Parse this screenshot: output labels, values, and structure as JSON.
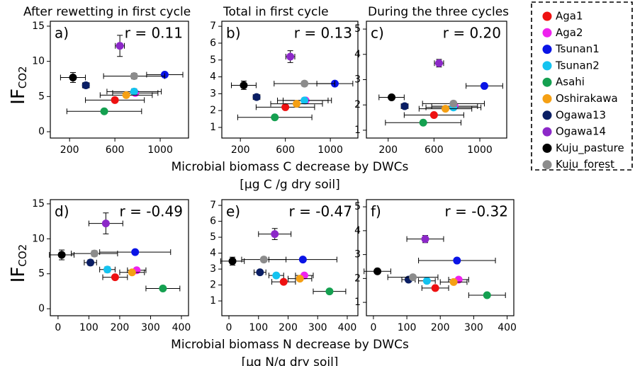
{
  "legend": {
    "names": [
      "Aga1",
      "Aga2",
      "Tsunan1",
      "Tsunan2",
      "Asahi",
      "Oshirakawa",
      "Ogawa13",
      "Ogawa14",
      "Kuju_pasture",
      "Kuju_forest"
    ],
    "colors": [
      "#ee1111",
      "#ee22ee",
      "#0a14e6",
      "#14c3f0",
      "#14a050",
      "#f5a014",
      "#0a1e64",
      "#8c28c8",
      "#000000",
      "#8c8c8c"
    ]
  },
  "chart_data": [
    {
      "type": "scatter",
      "title": "After rewetting in first cycle",
      "panel": "a)",
      "annotation": "r = 0.11",
      "ylabel": {
        "main": "IF",
        "sub": "CO2"
      },
      "x": [
        600,
        780,
        1040,
        770,
        506,
        700,
        344,
        644,
        230,
        770
      ],
      "x_err": [
        260,
        200,
        160,
        240,
        330,
        230,
        30,
        40,
        110,
        270
      ],
      "values": [
        4.5,
        5.5,
        8.1,
        5.7,
        2.9,
        5.2,
        6.6,
        12.2,
        7.7,
        7.9
      ],
      "y_err": [
        0.3,
        0.3,
        0.3,
        0.4,
        0.3,
        0.3,
        0.4,
        1.5,
        0.7,
        0.4
      ],
      "xlim": [
        30,
        1250
      ],
      "xticks": [
        200,
        600,
        1000
      ],
      "ylim": [
        -0.9,
        15.7
      ],
      "yticks": [
        0,
        5,
        10,
        15
      ]
    },
    {
      "type": "scatter",
      "title": "Total in first cycle",
      "panel": "b)",
      "annotation": "r = 0.13",
      "xlabel": [
        "Microbial biomass C decrease by DWCs",
        "[μg C /g dry soil]"
      ],
      "x": [
        600,
        780,
        1040,
        770,
        506,
        700,
        344,
        644,
        230,
        770
      ],
      "x_err": [
        260,
        200,
        160,
        240,
        330,
        230,
        30,
        40,
        110,
        270
      ],
      "values": [
        2.2,
        2.6,
        3.6,
        2.6,
        1.6,
        2.4,
        2.8,
        5.2,
        3.5,
        3.6
      ],
      "y_err": [
        0.1,
        0.1,
        0.1,
        0.15,
        0.1,
        0.1,
        0.1,
        0.35,
        0.25,
        0.15
      ],
      "xlim": [
        35,
        1245
      ],
      "xticks": [
        200,
        600,
        1000
      ],
      "ylim": [
        0.37,
        7.3
      ],
      "yticks": [
        1,
        2,
        3,
        4,
        5,
        6,
        7
      ]
    },
    {
      "type": "scatter",
      "title": "During the three cycles",
      "panel": "c)",
      "annotation": "r = 0.20",
      "x": [
        600,
        780,
        1040,
        770,
        506,
        700,
        344,
        644,
        230,
        770
      ],
      "x_err": [
        260,
        200,
        160,
        240,
        330,
        230,
        30,
        40,
        110,
        270
      ],
      "values": [
        1.6,
        1.95,
        2.75,
        1.9,
        1.3,
        1.85,
        1.95,
        3.65,
        2.3,
        2.05
      ],
      "y_err": [
        0.05,
        0.05,
        0.1,
        0.1,
        0.05,
        0.05,
        0.05,
        0.15,
        0.05,
        0.1
      ],
      "xlim": [
        10,
        1235
      ],
      "xticks": [
        200,
        600,
        1000
      ],
      "ylim": [
        0.69,
        5.31
      ],
      "yticks": [
        1,
        2,
        3,
        4,
        5
      ]
    },
    {
      "type": "scatter",
      "panel": "d)",
      "annotation": "r = -0.49",
      "ylabel": {
        "main": "IF",
        "sub": "CO2"
      },
      "x": [
        185,
        255,
        250,
        160,
        340,
        240,
        105,
        155,
        12,
        118
      ],
      "x_err": [
        40,
        30,
        115,
        25,
        55,
        40,
        20,
        55,
        40,
        75
      ],
      "values": [
        4.5,
        5.5,
        8.1,
        5.6,
        2.9,
        5.2,
        6.6,
        12.2,
        7.7,
        7.9
      ],
      "y_err": [
        0.3,
        0.3,
        0.3,
        0.4,
        0.3,
        0.3,
        0.4,
        1.5,
        0.7,
        0.4
      ],
      "xlim": [
        -25,
        423
      ],
      "xticks": [
        0,
        100,
        200,
        300,
        400
      ],
      "ylim": [
        -1.0,
        15.6
      ],
      "yticks": [
        0,
        5,
        10,
        15
      ]
    },
    {
      "type": "scatter",
      "panel": "e)",
      "annotation": "r = -0.47",
      "xlabel": [
        "Microbial biomass N decrease by DWCs",
        "[μg N/g dry soil]"
      ],
      "x": [
        185,
        255,
        250,
        160,
        340,
        240,
        105,
        155,
        12,
        118
      ],
      "x_err": [
        40,
        30,
        115,
        25,
        55,
        40,
        20,
        55,
        40,
        75
      ],
      "values": [
        2.2,
        2.6,
        3.6,
        2.6,
        1.6,
        2.4,
        2.8,
        5.2,
        3.5,
        3.6
      ],
      "y_err": [
        0.1,
        0.1,
        0.1,
        0.15,
        0.1,
        0.1,
        0.1,
        0.35,
        0.25,
        0.15
      ],
      "xlim": [
        -24,
        436
      ],
      "xticks": [
        0,
        100,
        200,
        300,
        400
      ],
      "ylim": [
        0.07,
        7.36
      ],
      "yticks": [
        1,
        2,
        3,
        4,
        5,
        6,
        7
      ]
    },
    {
      "type": "scatter",
      "panel": "f)",
      "annotation": "r = -0.32",
      "x": [
        185,
        255,
        250,
        160,
        340,
        240,
        105,
        155,
        12,
        118
      ],
      "x_err": [
        40,
        30,
        115,
        25,
        55,
        40,
        20,
        55,
        40,
        75
      ],
      "values": [
        1.6,
        1.95,
        2.75,
        1.9,
        1.3,
        1.85,
        1.95,
        3.65,
        2.3,
        2.05
      ],
      "y_err": [
        0.05,
        0.05,
        0.1,
        0.1,
        0.05,
        0.05,
        0.05,
        0.15,
        0.05,
        0.1
      ],
      "xlim": [
        -21,
        420
      ],
      "xticks": [
        0,
        100,
        200,
        300,
        400
      ],
      "ylim": [
        0.44,
        5.3
      ],
      "yticks": [
        1,
        2,
        3,
        4,
        5
      ]
    }
  ]
}
